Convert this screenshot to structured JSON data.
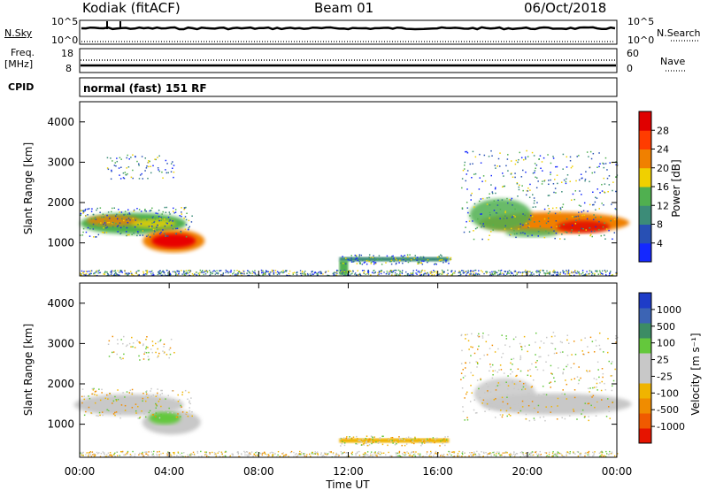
{
  "header": {
    "station": "Kodiak (fitACF)",
    "beam": "Beam 01",
    "date": "06/Oct/2018"
  },
  "status_panels": {
    "nsky_label": "N.Sky",
    "nsearch_label": "N.Search",
    "freq_label": "Freq.",
    "freq_unit": "[MHz]",
    "nave_label": "Nave",
    "cpid_label": "CPID",
    "cpid_text": "normal (fast) 151 RF",
    "noise_ticks": [
      "10^5",
      "10^0"
    ],
    "noise_right_ticks": [
      "10^5",
      "10^0"
    ],
    "freq_ticks": [
      "18",
      "8"
    ],
    "nave_ticks": [
      "60",
      "0"
    ]
  },
  "chart_data": [
    {
      "type": "heatmap",
      "name": "power",
      "ylabel": "Slant Range [km]",
      "colorbar_label": "Power [dB]",
      "xlim": [
        "00:00",
        "00:00"
      ],
      "ylim": [
        180,
        4500
      ],
      "yticks": [
        1000,
        2000,
        3000,
        4000
      ],
      "colorbar_ticks": [
        "4",
        "8",
        "12",
        "16",
        "20",
        "24",
        "28"
      ],
      "colorbar_colors": [
        "#1428ff",
        "#2850b4",
        "#3c8c78",
        "#50b050",
        "#f0d000",
        "#f08000",
        "#ff3c00",
        "#e00000"
      ],
      "patches": [
        {
          "t_start": 0.0,
          "t_end": 4.6,
          "range_min": 1250,
          "range_max": 1800,
          "level": "12-20 dB"
        },
        {
          "t_start": 2.9,
          "t_end": 5.2,
          "range_min": 800,
          "range_max": 1350,
          "level": "24-28 dB"
        },
        {
          "t_start": 17.2,
          "t_end": 24.0,
          "range_min": 1100,
          "range_max": 2200,
          "level": "16-28 dB"
        },
        {
          "t_start": 11.5,
          "t_end": 16.6,
          "range_min": 550,
          "range_max": 700,
          "level": "8-16 dB"
        }
      ]
    },
    {
      "type": "heatmap",
      "name": "velocity",
      "ylabel": "Slant Range [km]",
      "colorbar_label": "Velocity [m s⁻¹]",
      "xlabel": "Time UT",
      "xticks": [
        "00:00",
        "04:00",
        "08:00",
        "12:00",
        "16:00",
        "20:00",
        "00:00"
      ],
      "ylim": [
        180,
        4500
      ],
      "yticks": [
        1000,
        2000,
        3000,
        4000
      ],
      "colorbar_ticks": [
        "1000",
        "500",
        "100",
        "25",
        "-25",
        "-100",
        "-500",
        "-1000"
      ],
      "colorbar_colors": [
        "#1e3cc8",
        "#3c64b4",
        "#3c8c64",
        "#64c83c",
        "#c8c8c8",
        "#c8c8c8",
        "#f0b400",
        "#f08c00",
        "#f05a00",
        "#e61400"
      ]
    }
  ]
}
